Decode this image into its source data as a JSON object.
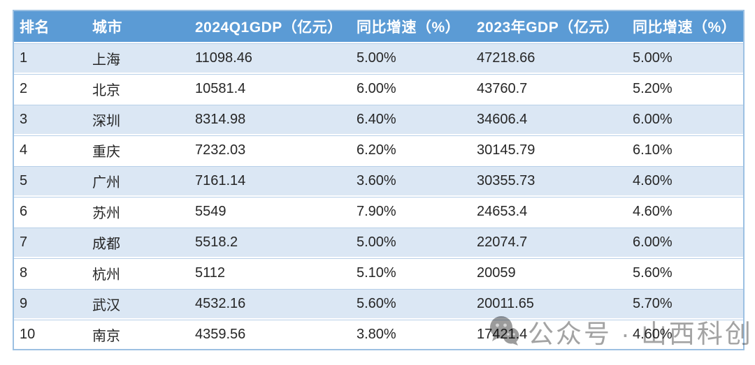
{
  "chart_data": {
    "type": "table",
    "columns": [
      "排名",
      "城市",
      "2024Q1GDP（亿元）",
      "同比增速（%）",
      "2023年GDP（亿元）",
      "同比增速（%）"
    ],
    "rows": [
      [
        "1",
        "上海",
        "11098.46",
        "5.00%",
        "47218.66",
        "5.00%"
      ],
      [
        "2",
        "北京",
        "10581.4",
        "6.00%",
        "43760.7",
        "5.20%"
      ],
      [
        "3",
        "深圳",
        "8314.98",
        "6.40%",
        "34606.4",
        "6.00%"
      ],
      [
        "4",
        "重庆",
        "7232.03",
        "6.20%",
        "30145.79",
        "6.10%"
      ],
      [
        "5",
        "广州",
        "7161.14",
        "3.60%",
        "30355.73",
        "4.60%"
      ],
      [
        "6",
        "苏州",
        "5549",
        "7.90%",
        "24653.4",
        "4.60%"
      ],
      [
        "7",
        "成都",
        "5518.2",
        "5.00%",
        "22074.7",
        "6.00%"
      ],
      [
        "8",
        "杭州",
        "5112",
        "5.10%",
        "20059",
        "5.60%"
      ],
      [
        "9",
        "武汉",
        "4532.16",
        "5.60%",
        "20011.65",
        "5.70%"
      ],
      [
        "10",
        "南京",
        "4359.56",
        "3.80%",
        "17421.4",
        "4.60%"
      ]
    ],
    "layout": {
      "banded_rows": true,
      "band_colors": [
        "#dbe7f4",
        "#ffffff"
      ]
    }
  },
  "watermark": {
    "icon": "wechat-icon",
    "text": "公众号 · 山西科创中心"
  },
  "colors": {
    "header_bg": "#5b9bd5",
    "header_text": "#ffffff",
    "row_band_blue": "#dbe7f4",
    "row_band_white": "#ffffff",
    "table_border": "#9cc0e2",
    "row_hairline": "#b7cfe8",
    "body_text": "#262626",
    "watermark_gray": "#a3a3a3"
  }
}
